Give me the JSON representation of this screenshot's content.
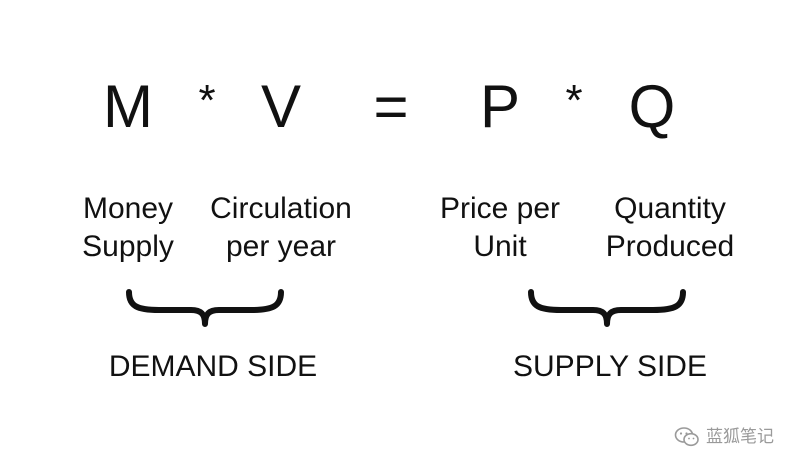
{
  "equation": {
    "m": "M",
    "op1": "*",
    "v": "V",
    "eq": "=",
    "p": "P",
    "op2": "*",
    "q": "Q"
  },
  "labels": {
    "m": [
      "Money",
      "Supply"
    ],
    "v": [
      "Circulation",
      "per year"
    ],
    "p": [
      "Price per",
      "Unit"
    ],
    "q": [
      "Quantity",
      "Produced"
    ]
  },
  "sides": {
    "demand": "DEMAND SIDE",
    "supply": "SUPPLY SIDE"
  },
  "watermark": {
    "icon": "wechat-icon",
    "text": "蓝狐笔记"
  }
}
